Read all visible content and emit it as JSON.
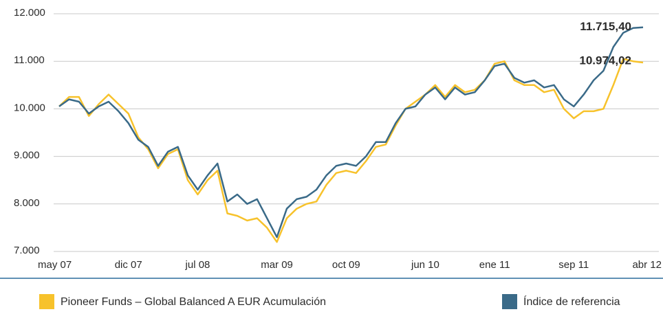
{
  "chart_data": {
    "type": "line",
    "categories": [
      "may 07",
      null,
      null,
      null,
      null,
      null,
      null,
      "dic 07",
      null,
      null,
      null,
      null,
      null,
      null,
      "jul 08",
      null,
      null,
      null,
      null,
      null,
      null,
      null,
      "mar 09",
      null,
      null,
      null,
      null,
      null,
      null,
      "oct 09",
      null,
      null,
      null,
      null,
      null,
      null,
      null,
      "jun 10",
      null,
      null,
      null,
      null,
      null,
      null,
      "ene 11",
      null,
      null,
      null,
      null,
      null,
      null,
      null,
      "sep 11",
      null,
      null,
      null,
      null,
      null,
      null,
      "abr 12"
    ],
    "series": [
      {
        "name": "Pioneer Funds – Global Balanced  A EUR Acumulación",
        "color": "#f7c22b",
        "values": [
          10050,
          10250,
          10250,
          9850,
          10100,
          10300,
          10100,
          9900,
          9400,
          9150,
          8750,
          9050,
          9150,
          8500,
          8200,
          8500,
          8700,
          7800,
          7750,
          7650,
          7700,
          7500,
          7200,
          7700,
          7900,
          8000,
          8050,
          8400,
          8650,
          8700,
          8650,
          8900,
          9200,
          9250,
          9650,
          10000,
          10150,
          10300,
          10500,
          10250,
          10500,
          10350,
          10400,
          10600,
          10950,
          11000,
          10600,
          10500,
          10500,
          10350,
          10400,
          10000,
          9800,
          9950,
          9950,
          10000,
          10500,
          11050,
          11000,
          10974.02
        ],
        "value_labels": [
          null,
          null,
          null,
          null,
          null,
          null,
          null,
          null,
          null,
          null,
          null,
          null,
          null,
          null,
          null,
          null,
          null,
          null,
          null,
          null,
          null,
          null,
          null,
          null,
          null,
          null,
          null,
          null,
          null,
          null,
          null,
          null,
          null,
          null,
          null,
          null,
          null,
          null,
          null,
          null,
          null,
          null,
          null,
          null,
          null,
          null,
          null,
          null,
          null,
          null,
          null,
          null,
          null,
          null,
          null,
          null,
          null,
          null,
          null,
          "10.974,02"
        ]
      },
      {
        "name": "Índice de referencia",
        "color": "#3a6a88",
        "values": [
          10050,
          10200,
          10150,
          9900,
          10050,
          10150,
          9950,
          9700,
          9350,
          9200,
          8800,
          9100,
          9200,
          8600,
          8300,
          8600,
          8850,
          8050,
          8200,
          8000,
          8100,
          7700,
          7300,
          7900,
          8100,
          8150,
          8300,
          8600,
          8800,
          8850,
          8800,
          9000,
          9300,
          9300,
          9700,
          10000,
          10050,
          10300,
          10450,
          10200,
          10450,
          10300,
          10350,
          10600,
          10900,
          10950,
          10650,
          10550,
          10600,
          10450,
          10500,
          10200,
          10050,
          10300,
          10600,
          10800,
          11300,
          11600,
          11700,
          11715.4
        ],
        "value_labels": [
          null,
          null,
          null,
          null,
          null,
          null,
          null,
          null,
          null,
          null,
          null,
          null,
          null,
          null,
          null,
          null,
          null,
          null,
          null,
          null,
          null,
          null,
          null,
          null,
          null,
          null,
          null,
          null,
          null,
          null,
          null,
          null,
          null,
          null,
          null,
          null,
          null,
          null,
          null,
          null,
          null,
          null,
          null,
          null,
          null,
          null,
          null,
          null,
          null,
          null,
          null,
          null,
          null,
          null,
          null,
          null,
          null,
          null,
          null,
          "11.715,40"
        ]
      }
    ],
    "ylim": [
      7000,
      12000
    ],
    "yticks": [
      {
        "value": 7000,
        "label": "7.000"
      },
      {
        "value": 8000,
        "label": "8.000"
      },
      {
        "value": 9000,
        "label": "9.000"
      },
      {
        "value": 10000,
        "label": "10.000"
      },
      {
        "value": 11000,
        "label": "11.000"
      },
      {
        "value": 12000,
        "label": "12.000"
      }
    ],
    "grid": true,
    "legend": "bottom"
  }
}
